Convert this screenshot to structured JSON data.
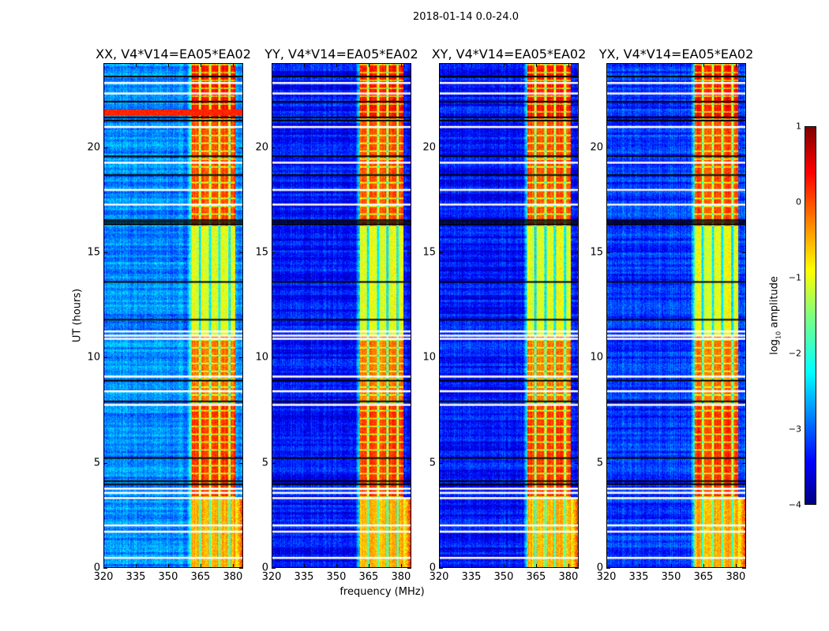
{
  "chart_data": {
    "type": "heatmap",
    "title": "2018-01-14 0.0-24.0",
    "xlabel": "frequency (MHz)",
    "ylabel": "UT (hours)",
    "xlim": [
      320,
      384.8
    ],
    "ylim": [
      0,
      24
    ],
    "xticks": [
      "320",
      "335",
      "350",
      "365",
      "380"
    ],
    "xtick_values": [
      320,
      335,
      350,
      365,
      380
    ],
    "yticks": [
      "0",
      "5",
      "10",
      "15",
      "20"
    ],
    "ytick_values": [
      0,
      5,
      10,
      15,
      20
    ],
    "panels": [
      {
        "title": "XX, V4*V14=EA05*EA02",
        "background_level": -2.7
      },
      {
        "title": "YY, V4*V14=EA05*EA02",
        "background_level": -3.3
      },
      {
        "title": "XY, V4*V14=EA05*EA02",
        "background_level": -3.3
      },
      {
        "title": "YX, V4*V14=EA05*EA02",
        "background_level": -3.1
      }
    ],
    "rfi_band_mhz": [
      361,
      381.5
    ],
    "rfi_gaps_mhz": [
      364.5,
      369.5,
      374,
      378.5
    ],
    "time_segments": [
      {
        "start": 0,
        "end": 3.3,
        "band_level": -0.5
      },
      {
        "start": 3.3,
        "end": 7.8,
        "band_level": 0.1
      },
      {
        "start": 7.8,
        "end": 11.1,
        "band_level": -0.2
      },
      {
        "start": 11.1,
        "end": 16.3,
        "band_level": -1.0
      },
      {
        "start": 16.3,
        "end": 21.5,
        "band_level": 0.0
      },
      {
        "start": 21.5,
        "end": 24,
        "band_level": 0.3
      }
    ],
    "flagged_hours_white": [
      0.45,
      1.7,
      2.0,
      3.3,
      3.55,
      3.75,
      7.75,
      8.4,
      9.1,
      10.9,
      11.05,
      11.25,
      17.3,
      18.0,
      19.3,
      21.0,
      22.6,
      23.1
    ],
    "flagged_hours_black": [
      3.95,
      4.1,
      5.2,
      7.9,
      8.9,
      11.8,
      13.6,
      16.35,
      16.45,
      16.55,
      18.7,
      19.6,
      21.3,
      21.45,
      22.2,
      23.4
    ],
    "colorbar": {
      "label_main": "log",
      "label_sub": "10",
      "label_rest": " amplitude",
      "range": [
        -4,
        1
      ],
      "ticks": [
        "1",
        "0",
        "−1",
        "−2",
        "−3",
        "−4"
      ],
      "tick_values": [
        1,
        0,
        -1,
        -2,
        -3,
        -4
      ],
      "colormap": "jet"
    }
  }
}
